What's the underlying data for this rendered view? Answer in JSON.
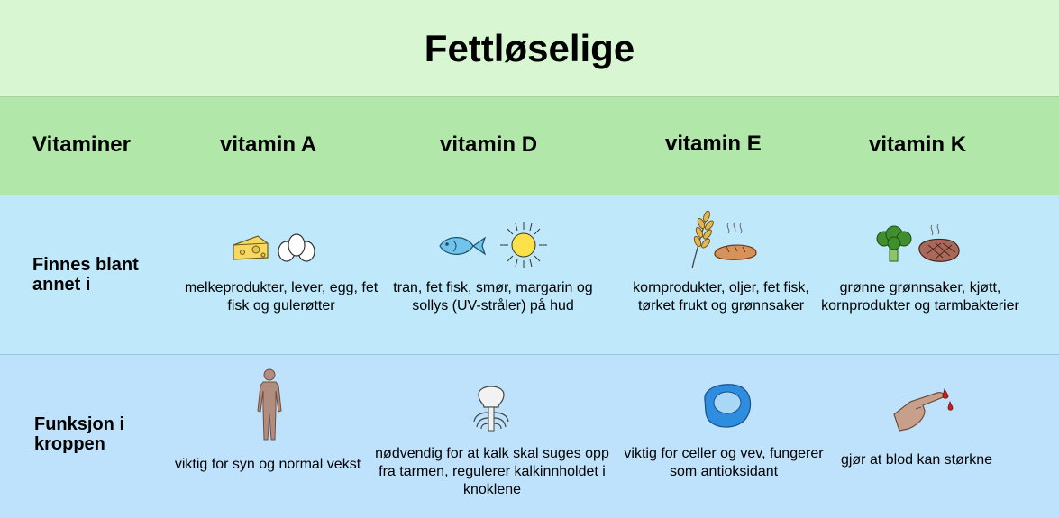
{
  "title": "Fettløselige",
  "header": {
    "label": "Vitaminer",
    "vitamins": [
      "vitamin A",
      "vitamin D",
      "vitamin E",
      "vitamin K"
    ]
  },
  "rows": [
    {
      "label": "Finnes blant annet i",
      "cells": [
        {
          "text": "melkeprodukter, lever, egg, fet fisk og gulerøtter",
          "icons": [
            "cheese-icon",
            "eggs-icon"
          ]
        },
        {
          "text": "tran, fet fisk, smør, margarin og sollys (UV-stråler) på hud",
          "icons": [
            "fish-icon",
            "sun-icon"
          ]
        },
        {
          "text": "kornprodukter, oljer, fet fisk, tørket frukt og grønnsaker",
          "icons": [
            "wheat-icon",
            "bread-icon"
          ]
        },
        {
          "text": "grønne grønnsaker, kjøtt, kornprodukter og tarmbakterier",
          "icons": [
            "broccoli-icon",
            "steak-icon"
          ]
        }
      ]
    },
    {
      "label": "Funksjon i kroppen",
      "cells": [
        {
          "text": "viktig for syn og normal vekst",
          "icons": [
            "human-body-icon"
          ]
        },
        {
          "text": "nødvendig for at kalk skal suges opp fra tarmen, regulerer kalkinnholdet i knoklene",
          "icons": [
            "skeleton-icon"
          ]
        },
        {
          "text": "viktig for celler og vev, fungerer som antioksidant",
          "icons": [
            "cell-icon"
          ]
        },
        {
          "text": "gjør at blod kan størkne",
          "icons": [
            "bleeding-finger-icon"
          ]
        }
      ]
    }
  ],
  "colors": {
    "title_band": "#d8f6d2",
    "header_band": "#b1e8a9",
    "sources_band": "#bfe9fb",
    "function_band": "#bfe2fc"
  }
}
